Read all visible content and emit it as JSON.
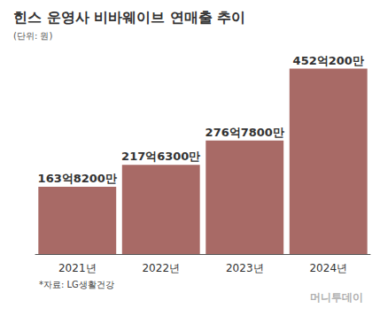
{
  "chart_data": {
    "type": "bar",
    "title": "힌스 운영사 비바웨이브 연매출 추이",
    "subtitle": "(단위: 원)",
    "categories": [
      "2021년",
      "2022년",
      "2023년",
      "2024년"
    ],
    "values": [
      16382000000,
      21763000000,
      27678000000,
      45202000000
    ],
    "value_labels": [
      "163억8200만",
      "217억6300만",
      "276억7800만",
      "452억200만"
    ],
    "color": "#a86a66",
    "ylim": [
      0,
      49000000000
    ],
    "grid": false,
    "tick_labels": "x",
    "data_labels": true,
    "source": "*자료: LG생활건강",
    "credit": "머니투데이"
  }
}
